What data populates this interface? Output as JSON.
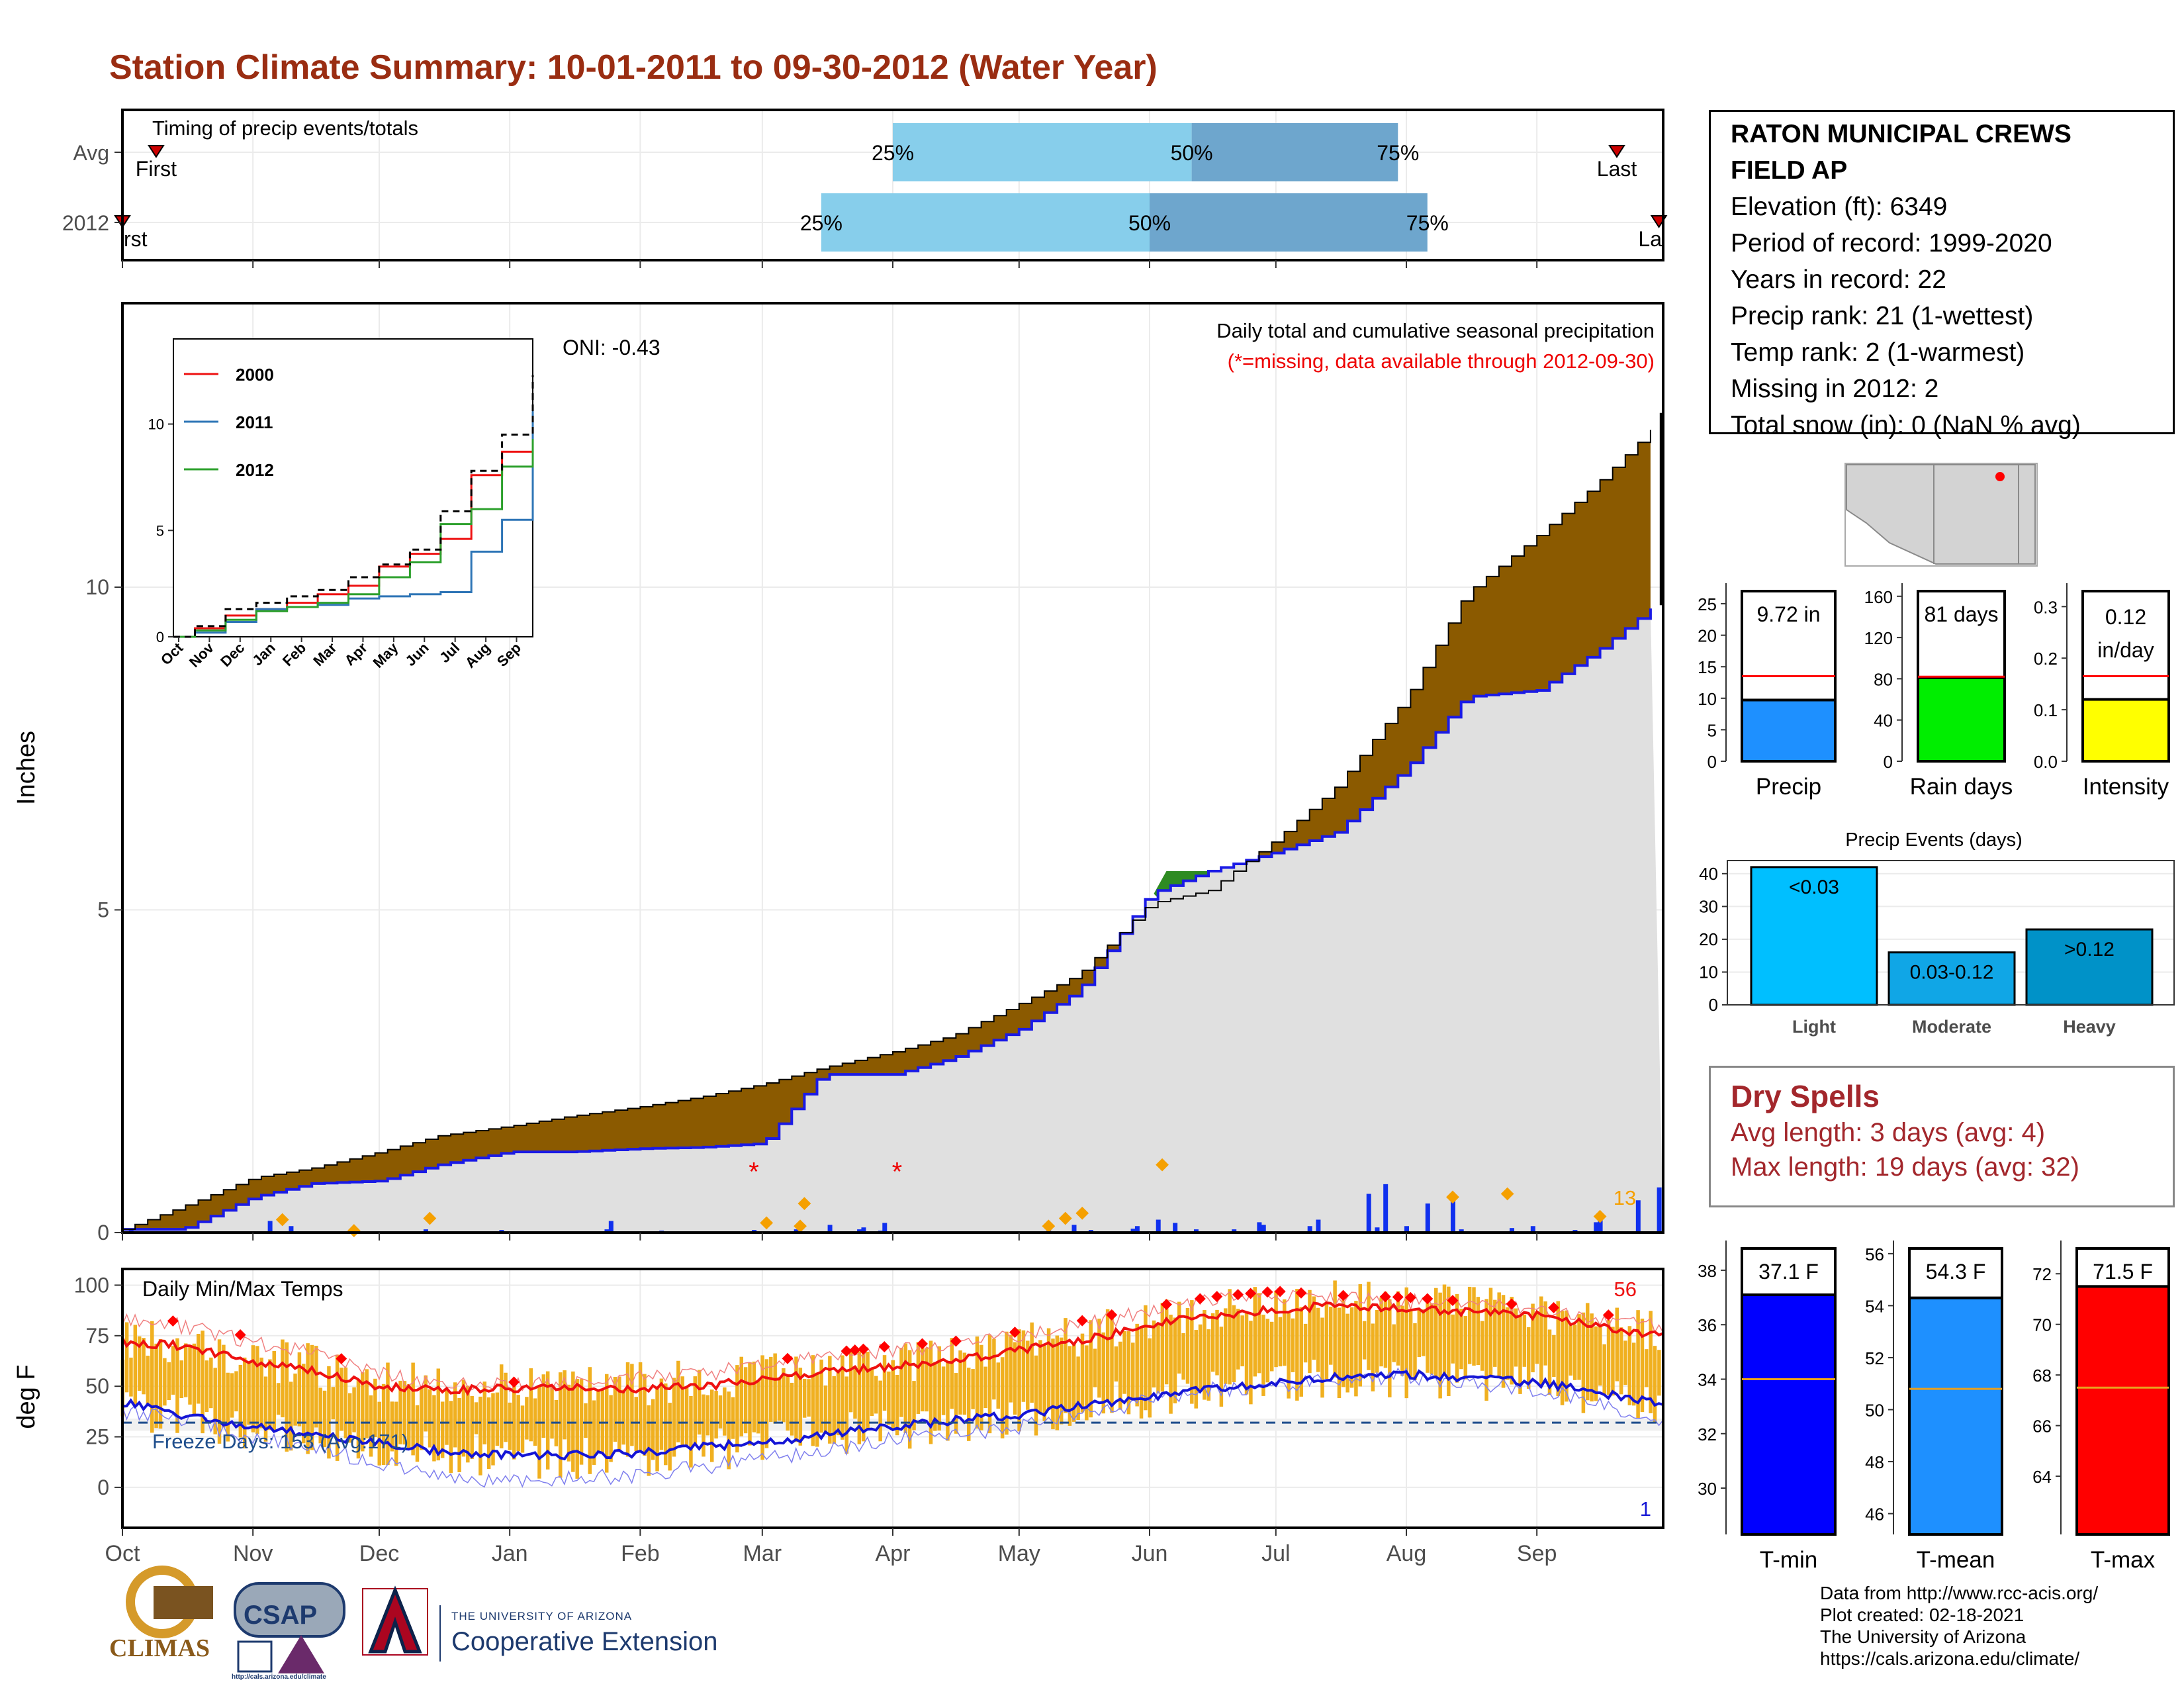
{
  "title": "Station Climate Summary: 10-01-2011 to 09-30-2012 (Water Year)",
  "timing": {
    "label": "Timing of precip events/totals",
    "row_labels": [
      "Avg",
      "2012"
    ],
    "first_label": "First",
    "last_label": "Last",
    "first_label_clipped": "rst",
    "last_label_clipped": "La",
    "pct_labels": [
      "25%",
      "50%",
      "75%"
    ],
    "avg": {
      "first": "2011-10-09",
      "p25": "2012-04-01",
      "p50": "2012-06-11",
      "p75": "2012-07-30",
      "last": "2012-09-20"
    },
    "y2012": {
      "first": "2011-10-01",
      "p25": "2012-03-15",
      "p50": "2012-06-01",
      "p75": "2012-08-06",
      "last": "2012-09-30"
    },
    "colors": {
      "early": "#87ceeb",
      "late": "#6ea6cd",
      "marker": "#cc0000"
    }
  },
  "station": {
    "name_line1": "RATON MUNICIPAL CREWS",
    "name_line2": "FIELD AP",
    "lines": [
      "Elevation (ft): 6349",
      "Period of record: 1999-2020",
      "Years in record: 22",
      "Precip rank: 21 (1-wettest)",
      "Temp rank: 2 (1-warmest)",
      "Missing in 2012: 2",
      "Total snow (in): 0 (NaN % avg)"
    ]
  },
  "precip_panel": {
    "ylabel": "Inches",
    "subtitle1": "Daily total and cumulative seasonal precipitation",
    "subtitle2": "(*=missing, data available through 2012-09-30)",
    "oni": "ONI: -0.43",
    "count_label": "13",
    "colors": {
      "above": "#8b5a00",
      "below": "#2e8b22",
      "fill": "#e0e0e0",
      "line": "#1a1ae6",
      "bar": "#1030ee",
      "marker": "#f5a000",
      "missing": "#ee0000"
    }
  },
  "temp_panel": {
    "ylabel": "deg F",
    "label": "Daily Min/Max Temps",
    "freeze_label": "Freeze Days: 153 (Avg:171)",
    "hot_count": "56",
    "cold_count": "1",
    "colors": {
      "range": "#f0b020",
      "max_line": "#ee1111",
      "min_line": "#1515d5",
      "freeze": "#1f4e8c"
    }
  },
  "month_labels": [
    "Oct",
    "Nov",
    "Dec",
    "Jan",
    "Feb",
    "Mar",
    "Apr",
    "May",
    "Jun",
    "Jul",
    "Aug",
    "Sep"
  ],
  "gauges": {
    "precip": {
      "label": "Precip",
      "value_label": "9.72 in",
      "value": 9.72,
      "avg": 13.5,
      "ymax": 27,
      "ticks": [
        0,
        5,
        10,
        15,
        20,
        25
      ],
      "color": "#1e90ff"
    },
    "rain_days": {
      "label": "Rain days",
      "value_label": "81 days",
      "value": 81,
      "avg": 82,
      "ymax": 165,
      "ticks": [
        0,
        40,
        80,
        120,
        160
      ],
      "color": "#00ee00"
    },
    "intensity": {
      "label": "Intensity",
      "value_label1": "0.12",
      "value_label2": "in/day",
      "value": 0.12,
      "avg": 0.165,
      "ymax": 0.33,
      "ticks": [
        "0.0",
        "0.1",
        "0.2",
        "0.3"
      ],
      "color": "#ffff00"
    }
  },
  "events": {
    "title": "Precip Events (days)",
    "ticks": [
      0,
      10,
      20,
      30,
      40
    ],
    "bars": [
      {
        "name": "Light",
        "label": "<0.03",
        "value": 42,
        "color": "#00bfff"
      },
      {
        "name": "Moderate",
        "label": "0.03-0.12",
        "value": 16,
        "color": "#10a6e6"
      },
      {
        "name": "Heavy",
        "label": ">0.12",
        "value": 23,
        "color": "#0092c8"
      }
    ]
  },
  "dry_spells": {
    "title": "Dry Spells",
    "avg_line": "Avg length: 3 days (avg: 4)",
    "max_line": "Max length: 19 days (avg: 32)"
  },
  "temps": {
    "tmin": {
      "label": "T-min",
      "value_label": "37.1 F",
      "value": 37.1,
      "avg": 34.0,
      "ymin": 28.3,
      "ymax": 38.8,
      "ticks": [
        30,
        32,
        34,
        36,
        38
      ],
      "color": "#0000ff"
    },
    "tmean": {
      "label": "T-mean",
      "value_label": "54.3 F",
      "value": 54.3,
      "avg": 50.8,
      "ymin": 45.2,
      "ymax": 56.2,
      "ticks": [
        46,
        48,
        50,
        52,
        54,
        56
      ],
      "color": "#1e90ff"
    },
    "tmax": {
      "label": "T-max",
      "value_label": "71.5 F",
      "value": 71.5,
      "avg": 67.5,
      "ymin": 61.7,
      "ymax": 73.0,
      "ticks": [
        64,
        66,
        68,
        70,
        72
      ],
      "color": "#ff0000"
    }
  },
  "credits": [
    "Data from http://www.rcc-acis.org/",
    "Plot created: 02-18-2021",
    "The University of Arizona",
    "https://cals.arizona.edu/climate/"
  ],
  "logos": {
    "climas": "CLIMAS",
    "csap": "CSAP",
    "ua_small": "THE UNIVERSITY OF ARIZONA",
    "ua_big": "Cooperative Extension",
    "csap_url": "http://cals.arizona.edu/climate"
  },
  "chart_data": [
    {
      "type": "area",
      "title": "Daily total and cumulative seasonal precipitation",
      "ylabel": "Inches",
      "ylim": [
        0,
        14.4
      ],
      "x_dates": [
        "2011-10-01",
        "2011-10-15",
        "2011-11-01",
        "2011-11-15",
        "2011-12-01",
        "2011-12-15",
        "2012-01-01",
        "2012-01-15",
        "2012-02-01",
        "2012-02-15",
        "2012-03-01",
        "2012-03-15",
        "2012-04-01",
        "2012-04-15",
        "2012-05-01",
        "2012-05-15",
        "2012-06-01",
        "2012-06-15",
        "2012-07-01",
        "2012-07-15",
        "2012-08-01",
        "2012-08-15",
        "2012-09-01",
        "2012-09-15",
        "2012-09-29",
        "2012-09-30"
      ],
      "series": [
        {
          "name": "",
          "values": [
            0.05,
            0.05,
            0.55,
            0.76,
            0.8,
            1.05,
            1.25,
            1.25,
            1.3,
            1.32,
            1.38,
            2.45,
            2.45,
            2.7,
            3.15,
            3.75,
            5.25,
            5.6,
            5.9,
            6.2,
            7.2,
            8.3,
            8.4,
            9.0,
            9.72,
            9.72
          ]
        },
        {
          "name": "",
          "values": [
            0.05,
            0.4,
            0.85,
            1.0,
            1.25,
            1.5,
            1.65,
            1.8,
            1.95,
            2.1,
            2.3,
            2.55,
            2.8,
            3.05,
            3.55,
            4.0,
            5.1,
            5.3,
            6.1,
            6.9,
            8.3,
            9.9,
            10.8,
            11.6,
            12.5,
            13.2
          ]
        }
      ],
      "annotations": [
        "ONI: -0.43",
        "13"
      ]
    },
    {
      "type": "line",
      "title": "",
      "x": [
        "Oct",
        "Nov",
        "Dec",
        "Jan",
        "Feb",
        "Mar",
        "Apr",
        "May",
        "Jun",
        "Jul",
        "Aug",
        "Sep"
      ],
      "ylim": [
        0,
        14
      ],
      "yticks": [
        0,
        5,
        10
      ],
      "series": [
        {
          "name": "2000",
          "values": [
            0.4,
            1.0,
            1.3,
            1.6,
            2.0,
            2.4,
            3.3,
            3.9,
            4.6,
            7.6,
            8.7,
            9.8
          ]
        },
        {
          "name": "2011",
          "values": [
            0.2,
            0.7,
            1.3,
            1.4,
            1.5,
            1.8,
            1.9,
            2.0,
            2.1,
            4.0,
            5.5,
            10.6
          ]
        },
        {
          "name": "2012",
          "values": [
            0.3,
            0.8,
            1.2,
            1.4,
            1.6,
            2.0,
            2.8,
            3.5,
            5.3,
            6.0,
            8.0,
            9.3
          ]
        },
        {
          "name": "",
          "values": [
            0.5,
            1.3,
            1.6,
            1.9,
            2.2,
            2.8,
            3.4,
            4.1,
            5.9,
            7.8,
            9.5,
            12.3
          ]
        }
      ]
    },
    {
      "type": "line",
      "title": "Daily Min/Max Temps",
      "ylabel": "deg F",
      "ylim": [
        -20,
        108
      ],
      "yticks": [
        0,
        25,
        50,
        75,
        100
      ],
      "x_dates": [
        "2011-10-01",
        "2011-10-15",
        "2011-11-01",
        "2011-11-15",
        "2011-12-01",
        "2011-12-15",
        "2012-01-01",
        "2012-01-15",
        "2012-02-01",
        "2012-02-15",
        "2012-03-01",
        "2012-03-15",
        "2012-04-01",
        "2012-04-15",
        "2012-05-01",
        "2012-05-15",
        "2012-06-01",
        "2012-06-15",
        "2012-07-01",
        "2012-07-15",
        "2012-08-01",
        "2012-08-15",
        "2012-09-01",
        "2012-09-15",
        "2012-09-30"
      ],
      "series": [
        {
          "name": "",
          "values": [
            72,
            70,
            62,
            58,
            50,
            48,
            49,
            49,
            49,
            50,
            53,
            57,
            60,
            62,
            68,
            72,
            80,
            85,
            88,
            90,
            88,
            87,
            85,
            80,
            75
          ]
        },
        {
          "name": "",
          "values": [
            42,
            36,
            30,
            26,
            22,
            18,
            16,
            16,
            17,
            20,
            22,
            26,
            30,
            33,
            36,
            40,
            45,
            49,
            52,
            55,
            56,
            54,
            52,
            47,
            42
          ]
        },
        {
          "name": "",
          "values": [
            82,
            80,
            72,
            66,
            56,
            52,
            50,
            51,
            54,
            56,
            60,
            64,
            68,
            70,
            75,
            80,
            87,
            92,
            95,
            93,
            92,
            90,
            88,
            84,
            80
          ]
        },
        {
          "name": "",
          "values": [
            38,
            34,
            24,
            20,
            12,
            6,
            3,
            4,
            6,
            10,
            14,
            18,
            24,
            26,
            30,
            36,
            43,
            48,
            50,
            54,
            55,
            52,
            48,
            42,
            34
          ]
        }
      ],
      "annotations": [
        "Freeze Days: 153 (Avg:171)",
        "56",
        "1"
      ]
    },
    {
      "type": "bar",
      "title": "",
      "categories": [
        "Precip"
      ],
      "values": [
        9.72
      ],
      "ylim": [
        0,
        27
      ]
    },
    {
      "type": "bar",
      "title": "",
      "categories": [
        "Rain days"
      ],
      "values": [
        81
      ],
      "ylim": [
        0,
        165
      ]
    },
    {
      "type": "bar",
      "title": "",
      "categories": [
        "Intensity"
      ],
      "values": [
        0.12
      ],
      "ylim": [
        0,
        0.33
      ]
    },
    {
      "type": "bar",
      "title": "Precip Events (days)",
      "categories": [
        "Light",
        "Moderate",
        "Heavy"
      ],
      "values": [
        42,
        16,
        23
      ],
      "ylim": [
        0,
        44
      ]
    },
    {
      "type": "bar",
      "title": "",
      "categories": [
        "T-min"
      ],
      "values": [
        37.1
      ],
      "ylim": [
        28.3,
        38.8
      ]
    },
    {
      "type": "bar",
      "title": "",
      "categories": [
        "T-mean"
      ],
      "values": [
        54.3
      ],
      "ylim": [
        45.2,
        56.2
      ]
    },
    {
      "type": "bar",
      "title": "",
      "categories": [
        "T-max"
      ],
      "values": [
        71.5
      ],
      "ylim": [
        61.7,
        73.0
      ]
    }
  ]
}
